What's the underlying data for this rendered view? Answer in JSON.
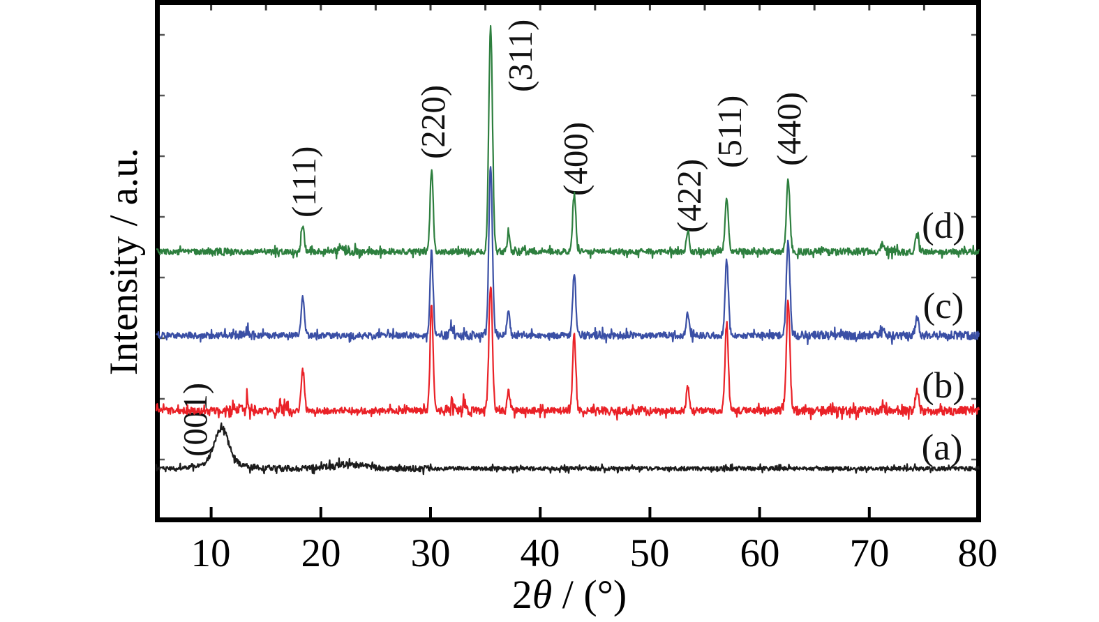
{
  "figure": {
    "ylabel": "Intensity / a.u.",
    "xlabel_parts": [
      "2",
      "θ",
      " / (°)"
    ],
    "background": "#ffffff",
    "axis_color": "#000000"
  },
  "chart_data": {
    "type": "line",
    "title": "",
    "xlabel": "2θ / (°)",
    "ylabel": "Intensity / a.u.",
    "x_range": [
      5,
      80
    ],
    "x_ticks": [
      "10",
      "20",
      "30",
      "40",
      "50",
      "60",
      "70",
      "80"
    ],
    "y_ticks": [],
    "grid": false,
    "legend_position": "right-inside",
    "peak_labels": [
      {
        "label": "(001)",
        "two_theta": 11.0
      },
      {
        "label": "(111)",
        "two_theta": 18.35
      },
      {
        "label": "(220)",
        "two_theta": 30.1
      },
      {
        "label": "(311)",
        "two_theta": 35.48
      },
      {
        "label": "(400)",
        "two_theta": 43.1
      },
      {
        "label": "(422)",
        "two_theta": 53.45
      },
      {
        "label": "(511)",
        "two_theta": 57.0
      },
      {
        "label": "(440)",
        "two_theta": 62.6
      }
    ],
    "draw_order": [
      "(d)",
      "(c)",
      "(b)",
      "(a)"
    ],
    "series": [
      {
        "name": "(a)",
        "color": "#1c1c1c",
        "offset": 74,
        "noise_amp": 3.0,
        "seed": 7,
        "noise_bursts": [
          [
            12,
            30,
            1.45
          ],
          [
            9,
            12,
            1.2
          ]
        ],
        "peaks": [
          {
            "two_theta": 10.95,
            "intensity": 50,
            "width_deg": 0.62
          },
          {
            "two_theta": 10.95,
            "intensity": 9,
            "width_deg": 1.7
          },
          {
            "two_theta": 22.4,
            "intensity": 6,
            "width_deg": 1.6
          }
        ]
      },
      {
        "name": "(b)",
        "color": "#ea2127",
        "offset": 157,
        "noise_amp": 4.8,
        "seed": 13,
        "noise_bursts": [
          [
            11.3,
            14.2,
            2.0
          ],
          [
            15.7,
            17.3,
            1.8
          ],
          [
            31.2,
            34.0,
            1.7
          ],
          [
            44.5,
            49.5,
            1.3
          ],
          [
            63.2,
            80,
            1.35
          ]
        ],
        "peaks": [
          {
            "two_theta": 18.35,
            "intensity": 60,
            "width_deg": 0.14
          },
          {
            "two_theta": 30.1,
            "intensity": 150,
            "width_deg": 0.14
          },
          {
            "two_theta": 35.48,
            "intensity": 182,
            "width_deg": 0.16
          },
          {
            "two_theta": 37.1,
            "intensity": 30,
            "width_deg": 0.13
          },
          {
            "two_theta": 43.1,
            "intensity": 107,
            "width_deg": 0.14
          },
          {
            "two_theta": 53.45,
            "intensity": 35,
            "width_deg": 0.13
          },
          {
            "two_theta": 57.0,
            "intensity": 125,
            "width_deg": 0.15
          },
          {
            "two_theta": 62.6,
            "intensity": 160,
            "width_deg": 0.16
          },
          {
            "two_theta": 71.2,
            "intensity": 12,
            "width_deg": 0.14
          },
          {
            "two_theta": 74.35,
            "intensity": 30,
            "width_deg": 0.15
          },
          {
            "two_theta": 12.6,
            "intensity": 10,
            "width_deg": 0.12
          },
          {
            "two_theta": 13.3,
            "intensity": 12,
            "width_deg": 0.12
          },
          {
            "two_theta": 16.3,
            "intensity": 9,
            "width_deg": 0.12
          },
          {
            "two_theta": 16.9,
            "intensity": 8,
            "width_deg": 0.12
          },
          {
            "two_theta": 31.9,
            "intensity": 13,
            "width_deg": 0.13
          },
          {
            "two_theta": 33.1,
            "intensity": 9,
            "width_deg": 0.12
          }
        ]
      },
      {
        "name": "(c)",
        "color": "#3a4fa5",
        "offset": 265,
        "noise_amp": 4.5,
        "seed": 29,
        "noise_bursts": [
          [
            12,
            14,
            1.5
          ],
          [
            31,
            34,
            1.4
          ],
          [
            34.8,
            36.3,
            1.2
          ],
          [
            44,
            48,
            1.2
          ],
          [
            63,
            80,
            1.35
          ]
        ],
        "peaks": [
          {
            "two_theta": 18.35,
            "intensity": 54,
            "width_deg": 0.14
          },
          {
            "two_theta": 30.1,
            "intensity": 122,
            "width_deg": 0.14
          },
          {
            "two_theta": 35.48,
            "intensity": 245,
            "width_deg": 0.16
          },
          {
            "two_theta": 37.1,
            "intensity": 32,
            "width_deg": 0.13
          },
          {
            "two_theta": 43.1,
            "intensity": 90,
            "width_deg": 0.14
          },
          {
            "two_theta": 53.45,
            "intensity": 32,
            "width_deg": 0.13
          },
          {
            "two_theta": 57.0,
            "intensity": 108,
            "width_deg": 0.15
          },
          {
            "two_theta": 62.6,
            "intensity": 136,
            "width_deg": 0.16
          },
          {
            "two_theta": 71.2,
            "intensity": 10,
            "width_deg": 0.14
          },
          {
            "two_theta": 74.35,
            "intensity": 26,
            "width_deg": 0.15
          },
          {
            "two_theta": 13.2,
            "intensity": 8,
            "width_deg": 0.12
          },
          {
            "two_theta": 31.9,
            "intensity": 9,
            "width_deg": 0.13
          }
        ]
      },
      {
        "name": "(d)",
        "color": "#2d7f3e",
        "offset": 385,
        "noise_amp": 4.2,
        "seed": 53,
        "noise_bursts": [
          [
            10,
            12,
            1.3
          ],
          [
            21,
            24,
            1.3
          ],
          [
            36,
            38.5,
            1.25
          ],
          [
            63,
            75,
            1.2
          ]
        ],
        "peaks": [
          {
            "two_theta": 18.35,
            "intensity": 36,
            "width_deg": 0.14
          },
          {
            "two_theta": 30.1,
            "intensity": 117,
            "width_deg": 0.14
          },
          {
            "two_theta": 35.48,
            "intensity": 320,
            "width_deg": 0.17
          },
          {
            "two_theta": 37.1,
            "intensity": 24,
            "width_deg": 0.13
          },
          {
            "two_theta": 43.1,
            "intensity": 82,
            "width_deg": 0.14
          },
          {
            "two_theta": 53.45,
            "intensity": 30,
            "width_deg": 0.13
          },
          {
            "two_theta": 57.0,
            "intensity": 79,
            "width_deg": 0.15
          },
          {
            "two_theta": 62.6,
            "intensity": 102,
            "width_deg": 0.16
          },
          {
            "two_theta": 71.2,
            "intensity": 10,
            "width_deg": 0.14
          },
          {
            "two_theta": 74.35,
            "intensity": 28,
            "width_deg": 0.15
          },
          {
            "two_theta": 21.8,
            "intensity": 7,
            "width_deg": 0.15
          }
        ]
      }
    ]
  }
}
